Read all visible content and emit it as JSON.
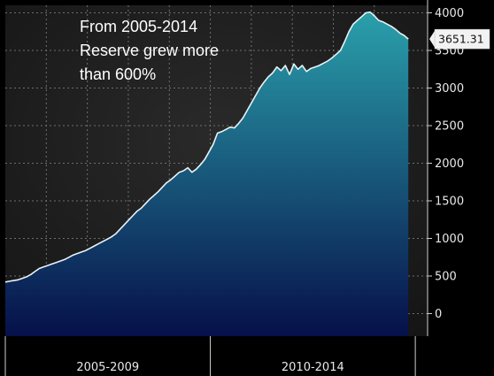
{
  "chart_data": {
    "type": "area",
    "title": "",
    "xlabel": "",
    "ylabel": "",
    "x_start": 2005.0,
    "x_end": 2014.83,
    "xlim": [
      2005.0,
      2015.3
    ],
    "ylim": [
      -300,
      4100
    ],
    "grid": true,
    "annotation_lines": [
      "From 2005-2014",
      "Reserve grew more",
      "than 600%"
    ],
    "last_value_label": "3651.31",
    "last_value": 3651.31,
    "y_ticks": [
      0,
      500,
      1000,
      1500,
      2000,
      2500,
      3000,
      3500,
      4000
    ],
    "y_tick_labels": [
      "0",
      "500",
      "1000",
      "1500",
      "2000",
      "2500",
      "3000",
      "3500",
      "4000"
    ],
    "x_period_labels": [
      {
        "label": "2005-2009",
        "from": 2005.0,
        "to": 2010.0
      },
      {
        "label": "2010-2014",
        "from": 2010.0,
        "to": 2015.0
      }
    ],
    "series": [
      {
        "values": [
          420,
          430,
          440,
          450,
          470,
          490,
          520,
          560,
          600,
          620,
          640,
          660,
          680,
          700,
          720,
          750,
          780,
          800,
          820,
          840,
          870,
          900,
          930,
          960,
          990,
          1020,
          1060,
          1120,
          1180,
          1240,
          1300,
          1360,
          1400,
          1460,
          1520,
          1570,
          1620,
          1680,
          1740,
          1780,
          1830,
          1880,
          1900,
          1940,
          1880,
          1920,
          1980,
          2050,
          2150,
          2250,
          2400,
          2420,
          2450,
          2480,
          2470,
          2530,
          2600,
          2700,
          2800,
          2900,
          3000,
          3080,
          3150,
          3200,
          3280,
          3230,
          3300,
          3180,
          3320,
          3250,
          3300,
          3220,
          3260,
          3280,
          3300,
          3330,
          3360,
          3400,
          3450,
          3500,
          3620,
          3750,
          3850,
          3900,
          3950,
          4000,
          4010,
          3960,
          3900,
          3880,
          3850,
          3820,
          3780,
          3730,
          3700,
          3651.31
        ]
      }
    ],
    "colors": {
      "background": "#1d1d1d",
      "area_top": "#2aa0ab",
      "area_bottom": "#06104a",
      "line": "#eaf2f4",
      "grid": "#6e6e6e",
      "axis": "#cfcfcf",
      "callout_bg": "#f2f2f2"
    }
  }
}
